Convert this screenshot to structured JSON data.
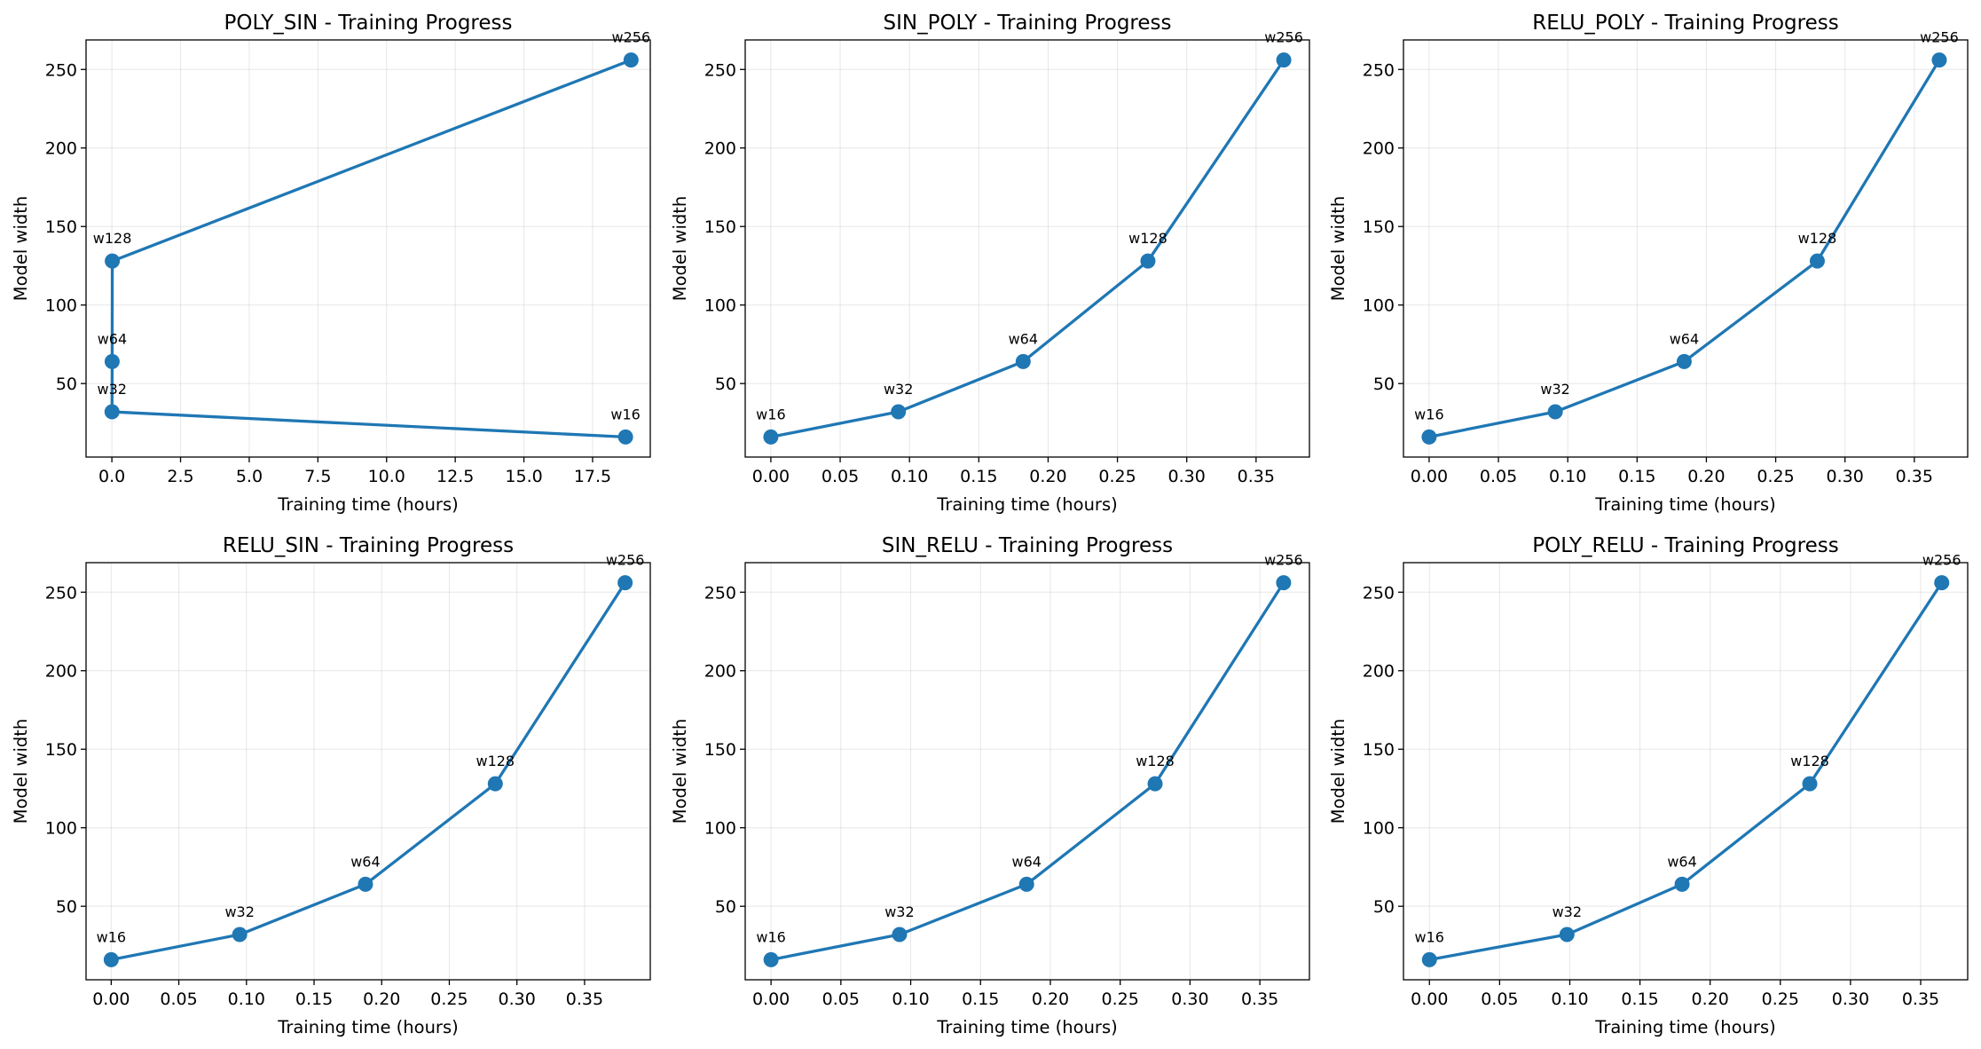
{
  "colors": {
    "series": "#1f77b4",
    "grid": "#b0b0b0",
    "axes": "#000000"
  },
  "chart_data": [
    {
      "type": "line",
      "title": "POLY_SIN - Training Progress",
      "xlabel": "Training time (hours)",
      "ylabel": "Model width",
      "grid": true,
      "xlim": [
        -0.94,
        19.6
      ],
      "ylim": [
        3.2,
        268.8
      ],
      "xticks": [
        0,
        2.5,
        5,
        7.5,
        10,
        12.5,
        15,
        17.5
      ],
      "xtick_labels": [
        "0.0",
        "2.5",
        "5.0",
        "7.5",
        "10.0",
        "12.5",
        "15.0",
        "17.5"
      ],
      "yticks": [
        50,
        100,
        150,
        200,
        250
      ],
      "ytick_labels": [
        "50",
        "100",
        "150",
        "200",
        "250"
      ],
      "x": [
        18.7,
        0.005,
        0.01,
        0.015,
        18.9
      ],
      "y": [
        16,
        32,
        64,
        128,
        256
      ],
      "point_labels": [
        "w16",
        "w32",
        "w64",
        "w128",
        "w256"
      ]
    },
    {
      "type": "line",
      "title": "SIN_POLY - Training Progress",
      "xlabel": "Training time (hours)",
      "ylabel": "Model width",
      "grid": true,
      "xlim": [
        -0.0185,
        0.3885
      ],
      "ylim": [
        3.2,
        268.8
      ],
      "xticks": [
        0,
        0.05,
        0.1,
        0.15,
        0.2,
        0.25,
        0.3,
        0.35
      ],
      "xtick_labels": [
        "0.00",
        "0.05",
        "0.10",
        "0.15",
        "0.20",
        "0.25",
        "0.30",
        "0.35"
      ],
      "yticks": [
        50,
        100,
        150,
        200,
        250
      ],
      "ytick_labels": [
        "50",
        "100",
        "150",
        "200",
        "250"
      ],
      "x": [
        0.0,
        0.092,
        0.182,
        0.272,
        0.37
      ],
      "y": [
        16,
        32,
        64,
        128,
        256
      ],
      "point_labels": [
        "w16",
        "w32",
        "w64",
        "w128",
        "w256"
      ]
    },
    {
      "type": "line",
      "title": "RELU_POLY - Training Progress",
      "xlabel": "Training time (hours)",
      "ylabel": "Model width",
      "grid": true,
      "xlim": [
        -0.0185,
        0.3885
      ],
      "ylim": [
        3.2,
        268.8
      ],
      "xticks": [
        0,
        0.05,
        0.1,
        0.15,
        0.2,
        0.25,
        0.3,
        0.35
      ],
      "xtick_labels": [
        "0.00",
        "0.05",
        "0.10",
        "0.15",
        "0.20",
        "0.25",
        "0.30",
        "0.35"
      ],
      "yticks": [
        50,
        100,
        150,
        200,
        250
      ],
      "ytick_labels": [
        "50",
        "100",
        "150",
        "200",
        "250"
      ],
      "x": [
        0.0,
        0.091,
        0.184,
        0.28,
        0.368
      ],
      "y": [
        16,
        32,
        64,
        128,
        256
      ],
      "point_labels": [
        "w16",
        "w32",
        "w64",
        "w128",
        "w256"
      ]
    },
    {
      "type": "line",
      "title": "RELU_SIN - Training Progress",
      "xlabel": "Training time (hours)",
      "ylabel": "Model width",
      "grid": true,
      "xlim": [
        -0.0186,
        0.3986
      ],
      "ylim": [
        3.2,
        268.8
      ],
      "xticks": [
        0,
        0.05,
        0.1,
        0.15,
        0.2,
        0.25,
        0.3,
        0.35
      ],
      "xtick_labels": [
        "0.00",
        "0.05",
        "0.10",
        "0.15",
        "0.20",
        "0.25",
        "0.30",
        "0.35"
      ],
      "yticks": [
        50,
        100,
        150,
        200,
        250
      ],
      "ytick_labels": [
        "50",
        "100",
        "150",
        "200",
        "250"
      ],
      "x": [
        0.0,
        0.095,
        0.188,
        0.284,
        0.38
      ],
      "y": [
        16,
        32,
        64,
        128,
        256
      ],
      "point_labels": [
        "w16",
        "w32",
        "w64",
        "w128",
        "w256"
      ]
    },
    {
      "type": "line",
      "title": "SIN_RELU - Training Progress",
      "xlabel": "Training time (hours)",
      "ylabel": "Model width",
      "grid": true,
      "xlim": [
        -0.0185,
        0.3855
      ],
      "ylim": [
        3.2,
        268.8
      ],
      "xticks": [
        0,
        0.05,
        0.1,
        0.15,
        0.2,
        0.25,
        0.3,
        0.35
      ],
      "xtick_labels": [
        "0.00",
        "0.05",
        "0.10",
        "0.15",
        "0.20",
        "0.25",
        "0.30",
        "0.35"
      ],
      "yticks": [
        50,
        100,
        150,
        200,
        250
      ],
      "ytick_labels": [
        "50",
        "100",
        "150",
        "200",
        "250"
      ],
      "x": [
        0.0,
        0.092,
        0.183,
        0.275,
        0.367
      ],
      "y": [
        16,
        32,
        64,
        128,
        256
      ],
      "point_labels": [
        "w16",
        "w32",
        "w64",
        "w128",
        "w256"
      ]
    },
    {
      "type": "line",
      "title": "POLY_RELU - Training Progress",
      "xlabel": "Training time (hours)",
      "ylabel": "Model width",
      "grid": true,
      "xlim": [
        -0.0185,
        0.3835
      ],
      "ylim": [
        3.2,
        268.8
      ],
      "xticks": [
        0,
        0.05,
        0.1,
        0.15,
        0.2,
        0.25,
        0.3,
        0.35
      ],
      "xtick_labels": [
        "0.00",
        "0.05",
        "0.10",
        "0.15",
        "0.20",
        "0.25",
        "0.30",
        "0.35"
      ],
      "yticks": [
        50,
        100,
        150,
        200,
        250
      ],
      "ytick_labels": [
        "50",
        "100",
        "150",
        "200",
        "250"
      ],
      "x": [
        0.0,
        0.098,
        0.18,
        0.271,
        0.365
      ],
      "y": [
        16,
        32,
        64,
        128,
        256
      ],
      "point_labels": [
        "w16",
        "w32",
        "w64",
        "w128",
        "w256"
      ]
    }
  ]
}
